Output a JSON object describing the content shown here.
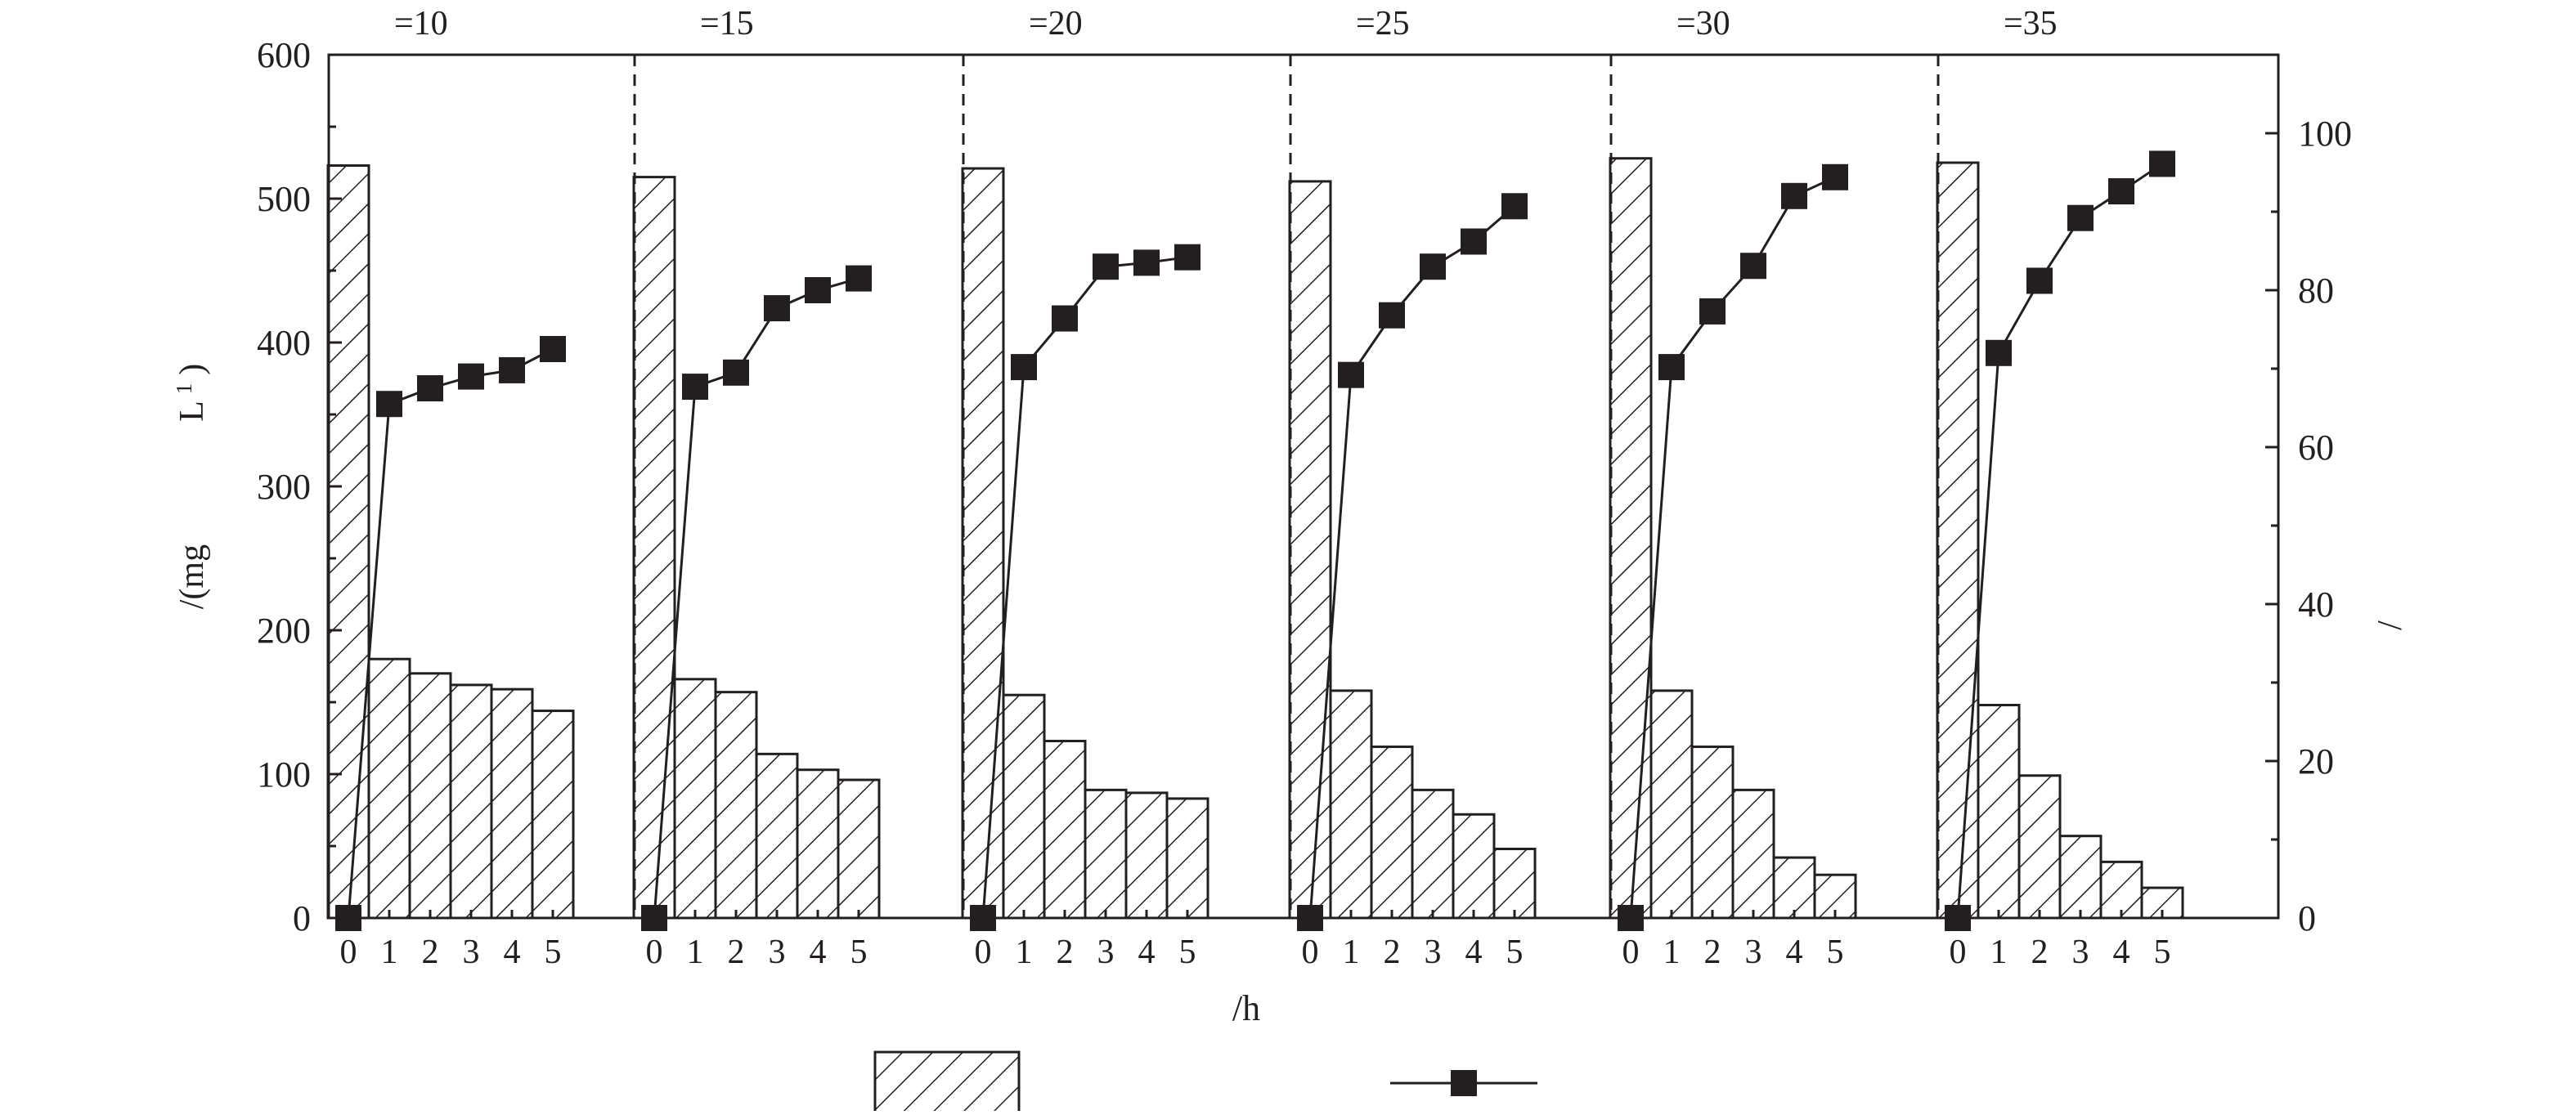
{
  "chart_data": {
    "type": "bar",
    "panels": [
      {
        "title": "=10",
        "categories": [
          "0",
          "1",
          "2",
          "3",
          "4",
          "5"
        ],
        "bar_values": [
          523,
          180,
          170,
          162,
          159,
          144
        ],
        "line_values": [
          0,
          65.5,
          67.5,
          69,
          69.8,
          72.5
        ]
      },
      {
        "title": "=15",
        "categories": [
          "0",
          "1",
          "2",
          "3",
          "4",
          "5"
        ],
        "bar_values": [
          515,
          166,
          157,
          114,
          103,
          96
        ],
        "line_values": [
          0,
          67.7,
          69.5,
          77.7,
          80,
          81.5
        ]
      },
      {
        "title": "=20",
        "categories": [
          "0",
          "1",
          "2",
          "3",
          "4",
          "5"
        ],
        "bar_values": [
          521,
          155,
          123,
          89,
          87,
          83
        ],
        "line_values": [
          0,
          70.2,
          76.4,
          83,
          83.5,
          84.2
        ]
      },
      {
        "title": "=25",
        "categories": [
          "0",
          "1",
          "2",
          "3",
          "4",
          "5"
        ],
        "bar_values": [
          512,
          158,
          119,
          89,
          72,
          48
        ],
        "line_values": [
          0,
          69.2,
          76.8,
          83,
          86.2,
          90.7
        ]
      },
      {
        "title": "=30",
        "categories": [
          "0",
          "1",
          "2",
          "3",
          "4",
          "5"
        ],
        "bar_values": [
          528,
          158,
          119,
          89,
          42,
          30
        ],
        "line_values": [
          0,
          70.2,
          77.3,
          83.1,
          92,
          94.4
        ]
      },
      {
        "title": "=35",
        "categories": [
          "0",
          "1",
          "2",
          "3",
          "4",
          "5"
        ],
        "bar_values": [
          525,
          148,
          99,
          57,
          39,
          21
        ],
        "line_values": [
          0,
          72,
          81.2,
          89.2,
          92.6,
          96.1
        ]
      }
    ],
    "left_axis": {
      "label_parts": [
        "/(mg",
        "L",
        "1",
        ")"
      ],
      "ylim": [
        0,
        600
      ],
      "ticks": [
        "0",
        "100",
        "200",
        "300",
        "400",
        "500",
        "600"
      ]
    },
    "right_axis": {
      "label": "/",
      "ylim": [
        0,
        110
      ],
      "ticks": [
        "0",
        "20",
        "40",
        "60",
        "80",
        "100"
      ]
    },
    "xlabel": "/h",
    "legend": {
      "placement": "bottom",
      "entries": [
        {
          "marker": "hatched-bar"
        },
        {
          "marker": "square-line"
        }
      ]
    },
    "grid": false,
    "colors": {
      "ink": "#231f20",
      "background": "#ffffff"
    }
  }
}
